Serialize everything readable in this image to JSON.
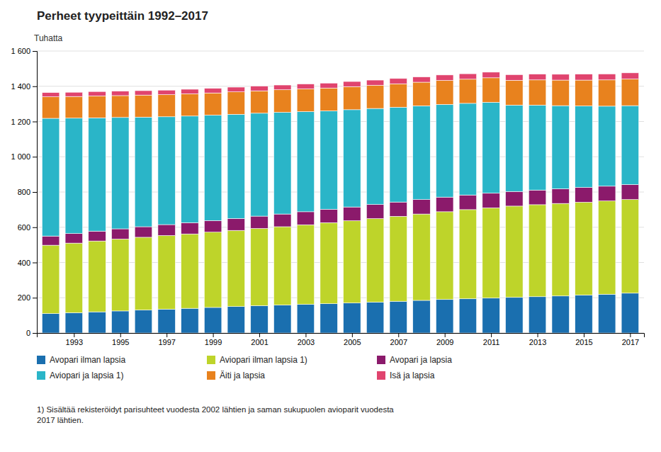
{
  "chart_data": {
    "type": "bar",
    "stacked": true,
    "title": "Perheet tyypeittäin 1992–2017",
    "y_label": "Tuhatta",
    "x": [
      1992,
      1993,
      1994,
      1995,
      1996,
      1997,
      1998,
      1999,
      2000,
      2001,
      2002,
      2003,
      2004,
      2005,
      2006,
      2007,
      2008,
      2009,
      2010,
      2011,
      2012,
      2013,
      2014,
      2015,
      2016,
      2017
    ],
    "xlim": [
      1991.4,
      2017.6
    ],
    "xticks": [
      1993,
      1995,
      1997,
      1999,
      2001,
      2003,
      2005,
      2007,
      2009,
      2011,
      2013,
      2015,
      2017
    ],
    "ylim": [
      0,
      1600
    ],
    "yticks": [
      0,
      200,
      400,
      600,
      800,
      {
        "value": 1000,
        "label": "1 000"
      },
      {
        "value": 1200,
        "label": "1 200"
      },
      {
        "value": 1400,
        "label": "1 400"
      },
      {
        "value": 1600,
        "label": "1 600"
      }
    ],
    "grid": true,
    "series": [
      {
        "name": "Avopari ilman lapsia",
        "color": "#1a6faf",
        "values": [
          110,
          115,
          120,
          125,
          130,
          135,
          140,
          145,
          150,
          155,
          158,
          162,
          166,
          170,
          175,
          180,
          185,
          190,
          194,
          198,
          202,
          206,
          210,
          215,
          220,
          226
        ]
      },
      {
        "name": "Aviopari ilman lapsia 1)",
        "color": "#bed42a",
        "values": [
          388,
          395,
          402,
          408,
          413,
          418,
          422,
          427,
          432,
          438,
          445,
          452,
          460,
          467,
          474,
          482,
          490,
          498,
          506,
          512,
          518,
          522,
          525,
          527,
          529,
          531
        ]
      },
      {
        "name": "Avopari ja lapsia",
        "color": "#8b1a6b",
        "values": [
          52,
          54,
          56,
          58,
          60,
          62,
          64,
          66,
          68,
          70,
          72,
          74,
          76,
          78,
          80,
          81,
          82,
          83,
          83,
          83,
          83,
          83,
          83,
          84,
          84,
          85
        ]
      },
      {
        "name": "Aviopari ja lapsia 1)",
        "color": "#2ab5c8",
        "values": [
          668,
          655,
          643,
          632,
          622,
          612,
          605,
          598,
          591,
          584,
          577,
          568,
          558,
          552,
          545,
          538,
          532,
          526,
          520,
          516,
          490,
          482,
          472,
          462,
          454,
          448
        ]
      },
      {
        "name": "Äiti ja lapsia",
        "color": "#e8821e",
        "values": [
          122,
          123,
          124,
          124,
          125,
          125,
          126,
          126,
          127,
          127,
          128,
          129,
          130,
          131,
          132,
          133,
          134,
          136,
          137,
          139,
          141,
          143,
          145,
          147,
          149,
          151
        ]
      },
      {
        "name": "Isä ja lapsia",
        "color": "#e0446e",
        "values": [
          24,
          24,
          25,
          25,
          25,
          26,
          26,
          26,
          27,
          27,
          27,
          28,
          28,
          29,
          29,
          30,
          30,
          31,
          31,
          32,
          32,
          33,
          33,
          34,
          34,
          35
        ]
      }
    ],
    "footnote": "1) Sisältää rekisteröidyt parisuhteet vuodesta 2002 lähtien ja saman sukupuolen avioparit vuodesta\n2017 lähtien."
  }
}
